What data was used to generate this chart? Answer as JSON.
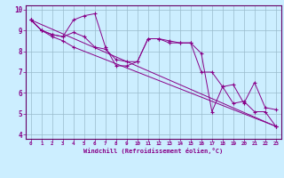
{
  "xlabel": "Windchill (Refroidissement éolien,°C)",
  "bg_color": "#cceeff",
  "line_color": "#880088",
  "grid_color": "#99bbcc",
  "spine_color": "#660066",
  "xlim": [
    -0.5,
    23.5
  ],
  "ylim": [
    3.8,
    10.2
  ],
  "yticks": [
    4,
    5,
    6,
    7,
    8,
    9,
    10
  ],
  "xticks": [
    0,
    1,
    2,
    3,
    4,
    5,
    6,
    7,
    8,
    9,
    10,
    11,
    12,
    13,
    14,
    15,
    16,
    17,
    18,
    19,
    20,
    21,
    22,
    23
  ],
  "series": [
    {
      "x": [
        0,
        23
      ],
      "y": [
        9.5,
        4.4
      ]
    },
    {
      "x": [
        0,
        1,
        2,
        3,
        4,
        5,
        6,
        7,
        8,
        9,
        10,
        11,
        12,
        13,
        14,
        15,
        16,
        17,
        18,
        19,
        20,
        21,
        22,
        23
      ],
      "y": [
        9.5,
        9.0,
        8.8,
        8.7,
        9.5,
        9.7,
        9.8,
        8.2,
        7.3,
        7.3,
        7.5,
        8.6,
        8.6,
        8.5,
        8.4,
        8.4,
        7.9,
        5.1,
        6.3,
        6.4,
        5.5,
        6.5,
        5.3,
        5.2
      ]
    },
    {
      "x": [
        0,
        1,
        2,
        3,
        4,
        5,
        6,
        7,
        8,
        9,
        10,
        11,
        12,
        13,
        14,
        15,
        16,
        17,
        18,
        19,
        20,
        21,
        22,
        23
      ],
      "y": [
        9.5,
        9.0,
        8.8,
        8.7,
        8.9,
        8.7,
        8.2,
        8.1,
        7.6,
        7.5,
        7.5,
        8.6,
        8.6,
        8.4,
        8.4,
        8.4,
        7.0,
        7.0,
        6.3,
        5.5,
        5.6,
        5.1,
        5.1,
        4.4
      ]
    },
    {
      "x": [
        0,
        1,
        2,
        3,
        4,
        23
      ],
      "y": [
        9.5,
        9.0,
        8.7,
        8.5,
        8.2,
        4.4
      ]
    }
  ]
}
